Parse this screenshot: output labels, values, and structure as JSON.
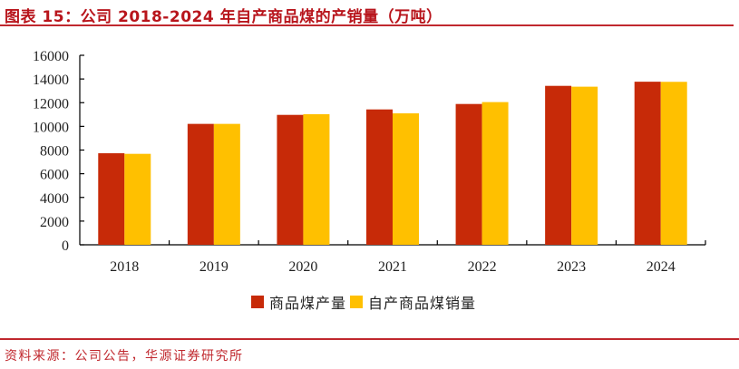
{
  "header": {
    "title": "图表 15：公司 2018-2024 年自产商品煤的产销量（万吨）"
  },
  "footer": {
    "source": "资料来源：公司公告，华源证券研究所"
  },
  "colors": {
    "accent": "#c0282e",
    "series_production": "#c72a08",
    "series_sales": "#ffc000",
    "axis": "#000000"
  },
  "legend": {
    "items": [
      {
        "label": "商品煤产量",
        "color": "#c72a08"
      },
      {
        "label": "自产商品煤销量",
        "color": "#ffc000"
      }
    ]
  },
  "chart_data": {
    "type": "bar",
    "title": "公司 2018-2024 年自产商品煤的产销量（万吨）",
    "xlabel": "",
    "ylabel": "万吨",
    "categories": [
      "2018",
      "2019",
      "2020",
      "2021",
      "2022",
      "2023",
      "2024"
    ],
    "series": [
      {
        "name": "商品煤产量",
        "color": "#c72a08",
        "values": [
          7730,
          10210,
          10970,
          11430,
          11890,
          13420,
          13770
        ]
      },
      {
        "name": "自产商品煤销量",
        "color": "#ffc000",
        "values": [
          7680,
          10210,
          11030,
          11100,
          12050,
          13350,
          13760
        ]
      }
    ],
    "ylim": [
      0,
      16000
    ],
    "yticks": [
      0,
      2000,
      4000,
      6000,
      8000,
      10000,
      12000,
      14000,
      16000
    ],
    "grid": false,
    "legend_position": "bottom"
  }
}
